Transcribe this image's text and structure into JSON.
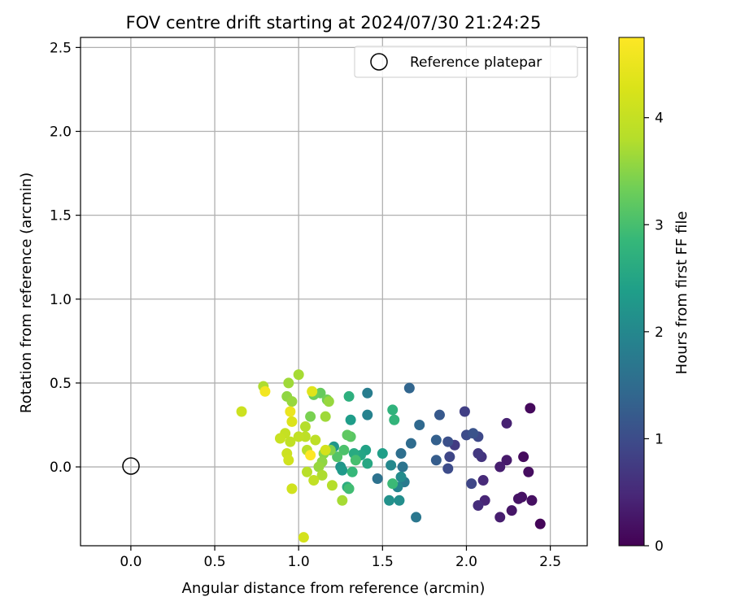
{
  "chart_data": {
    "type": "scatter",
    "title": "FOV centre drift starting at 2024/07/30 21:24:25",
    "xlabel": "Angular distance from reference (arcmin)",
    "ylabel": "Rotation from reference (arcmin)",
    "xlim": [
      -0.3,
      2.72
    ],
    "ylim": [
      -0.47,
      2.56
    ],
    "x_ticks": [
      0.0,
      0.5,
      1.0,
      1.5,
      2.0,
      2.5
    ],
    "x_tick_labels": [
      "0.0",
      "0.5",
      "1.0",
      "1.5",
      "2.0",
      "2.5"
    ],
    "y_ticks": [
      0.0,
      0.5,
      1.0,
      1.5,
      2.0,
      2.5
    ],
    "y_tick_labels": [
      "0.0",
      "0.5",
      "1.0",
      "1.5",
      "2.0",
      "2.5"
    ],
    "grid": true,
    "legend": {
      "location": "upper right",
      "entries": [
        "Reference platepar"
      ]
    },
    "reference_point": {
      "x": 0.0,
      "y": 0.0,
      "label": "Reference platepar"
    },
    "colorbar": {
      "label": "Hours from first FF file",
      "colormap": "viridis",
      "range": [
        0,
        4.75
      ],
      "ticks": [
        0,
        1,
        2,
        3,
        4
      ],
      "tick_labels": [
        "0",
        "1",
        "2",
        "3",
        "4"
      ]
    },
    "series": [
      {
        "points": [
          {
            "x": 2.44,
            "y": -0.34,
            "h": 0.05
          },
          {
            "x": 2.38,
            "y": 0.35,
            "h": 0.1
          },
          {
            "x": 2.34,
            "y": 0.06,
            "h": 0.12
          },
          {
            "x": 2.37,
            "y": -0.03,
            "h": 0.15
          },
          {
            "x": 2.39,
            "y": -0.2,
            "h": 0.18
          },
          {
            "x": 2.33,
            "y": -0.18,
            "h": 0.2
          },
          {
            "x": 2.31,
            "y": -0.19,
            "h": 0.22
          },
          {
            "x": 2.27,
            "y": -0.26,
            "h": 0.25
          },
          {
            "x": 2.24,
            "y": 0.04,
            "h": 0.3
          },
          {
            "x": 2.2,
            "y": 0.0,
            "h": 0.35
          },
          {
            "x": 2.2,
            "y": -0.3,
            "h": 0.35
          },
          {
            "x": 2.24,
            "y": 0.26,
            "h": 0.4
          },
          {
            "x": 2.11,
            "y": -0.2,
            "h": 0.45
          },
          {
            "x": 2.1,
            "y": -0.08,
            "h": 0.5
          },
          {
            "x": 2.07,
            "y": -0.23,
            "h": 0.55
          },
          {
            "x": 2.09,
            "y": 0.06,
            "h": 0.65
          },
          {
            "x": 2.07,
            "y": 0.08,
            "h": 0.7
          },
          {
            "x": 1.93,
            "y": 0.13,
            "h": 0.75
          },
          {
            "x": 1.99,
            "y": 0.33,
            "h": 0.8
          },
          {
            "x": 2.03,
            "y": -0.1,
            "h": 0.9
          },
          {
            "x": 1.9,
            "y": 0.06,
            "h": 0.9
          },
          {
            "x": 2.07,
            "y": 0.18,
            "h": 0.95
          },
          {
            "x": 2.0,
            "y": 0.19,
            "h": 1.0
          },
          {
            "x": 1.89,
            "y": -0.01,
            "h": 1.0
          },
          {
            "x": 1.89,
            "y": 0.15,
            "h": 1.05
          },
          {
            "x": 2.04,
            "y": 0.2,
            "h": 1.1
          },
          {
            "x": 1.84,
            "y": 0.31,
            "h": 1.2
          },
          {
            "x": 1.82,
            "y": 0.04,
            "h": 1.25
          },
          {
            "x": 1.82,
            "y": 0.16,
            "h": 1.3
          },
          {
            "x": 1.66,
            "y": 0.47,
            "h": 1.4
          },
          {
            "x": 1.72,
            "y": 0.25,
            "h": 1.45
          },
          {
            "x": 1.67,
            "y": 0.14,
            "h": 1.5
          },
          {
            "x": 1.61,
            "y": 0.08,
            "h": 1.55
          },
          {
            "x": 1.47,
            "y": -0.07,
            "h": 1.6
          },
          {
            "x": 1.62,
            "y": 0.0,
            "h": 1.65
          },
          {
            "x": 1.7,
            "y": -0.3,
            "h": 1.7
          },
          {
            "x": 1.63,
            "y": -0.09,
            "h": 1.75
          },
          {
            "x": 1.41,
            "y": 0.44,
            "h": 1.8
          },
          {
            "x": 1.41,
            "y": 0.31,
            "h": 1.9
          },
          {
            "x": 1.59,
            "y": -0.12,
            "h": 1.95
          },
          {
            "x": 1.55,
            "y": 0.01,
            "h": 2.0
          },
          {
            "x": 1.61,
            "y": -0.06,
            "h": 2.05
          },
          {
            "x": 1.6,
            "y": -0.2,
            "h": 2.1
          },
          {
            "x": 1.54,
            "y": -0.2,
            "h": 2.15
          },
          {
            "x": 1.25,
            "y": 0.0,
            "h": 2.2
          },
          {
            "x": 1.21,
            "y": 0.12,
            "h": 2.25
          },
          {
            "x": 1.26,
            "y": -0.02,
            "h": 2.3
          },
          {
            "x": 1.31,
            "y": 0.28,
            "h": 2.35
          },
          {
            "x": 1.5,
            "y": 0.08,
            "h": 2.4
          },
          {
            "x": 1.4,
            "y": 0.1,
            "h": 2.45
          },
          {
            "x": 1.37,
            "y": 0.07,
            "h": 2.5
          },
          {
            "x": 1.41,
            "y": 0.02,
            "h": 2.55
          },
          {
            "x": 1.33,
            "y": 0.08,
            "h": 2.6
          },
          {
            "x": 1.29,
            "y": -0.12,
            "h": 2.65
          },
          {
            "x": 1.3,
            "y": 0.42,
            "h": 2.7
          },
          {
            "x": 1.56,
            "y": 0.34,
            "h": 2.75
          },
          {
            "x": 1.57,
            "y": 0.28,
            "h": 2.8
          },
          {
            "x": 1.32,
            "y": -0.03,
            "h": 2.85
          },
          {
            "x": 1.56,
            "y": -0.1,
            "h": 2.9
          },
          {
            "x": 1.3,
            "y": -0.13,
            "h": 2.95
          },
          {
            "x": 1.34,
            "y": 0.04,
            "h": 3.0
          },
          {
            "x": 1.27,
            "y": 0.1,
            "h": 3.05
          },
          {
            "x": 1.23,
            "y": 0.06,
            "h": 3.1
          },
          {
            "x": 1.31,
            "y": 0.18,
            "h": 3.15
          },
          {
            "x": 1.29,
            "y": 0.19,
            "h": 3.2
          },
          {
            "x": 1.13,
            "y": 0.44,
            "h": 3.25
          },
          {
            "x": 1.09,
            "y": 0.43,
            "h": 3.3
          },
          {
            "x": 1.17,
            "y": 0.4,
            "h": 3.35
          },
          {
            "x": 1.07,
            "y": 0.3,
            "h": 3.4
          },
          {
            "x": 1.19,
            "y": 0.1,
            "h": 3.45
          },
          {
            "x": 1.15,
            "y": 0.08,
            "h": 3.5
          },
          {
            "x": 1.14,
            "y": 0.03,
            "h": 3.55
          },
          {
            "x": 1.12,
            "y": 0.0,
            "h": 3.6
          },
          {
            "x": 1.18,
            "y": 0.39,
            "h": 3.6
          },
          {
            "x": 1.16,
            "y": 0.3,
            "h": 3.65
          },
          {
            "x": 1.26,
            "y": -0.2,
            "h": 3.7
          },
          {
            "x": 1.14,
            "y": -0.05,
            "h": 3.75
          },
          {
            "x": 1.2,
            "y": -0.11,
            "h": 3.8
          },
          {
            "x": 1.05,
            "y": 0.1,
            "h": 3.85
          },
          {
            "x": 1.05,
            "y": -0.03,
            "h": 3.85
          },
          {
            "x": 1.1,
            "y": 0.16,
            "h": 3.9
          },
          {
            "x": 1.04,
            "y": 0.18,
            "h": 3.9
          },
          {
            "x": 1.09,
            "y": -0.08,
            "h": 3.95
          },
          {
            "x": 0.95,
            "y": 0.15,
            "h": 3.95
          },
          {
            "x": 0.93,
            "y": 0.42,
            "h": 3.55
          },
          {
            "x": 0.96,
            "y": 0.39,
            "h": 3.6
          },
          {
            "x": 0.94,
            "y": 0.5,
            "h": 3.65
          },
          {
            "x": 1.0,
            "y": 0.55,
            "h": 3.7
          },
          {
            "x": 0.79,
            "y": 0.48,
            "h": 3.75
          },
          {
            "x": 1.04,
            "y": 0.24,
            "h": 3.8
          },
          {
            "x": 1.0,
            "y": 0.18,
            "h": 3.95
          },
          {
            "x": 0.92,
            "y": 0.2,
            "h": 4.0
          },
          {
            "x": 0.89,
            "y": 0.17,
            "h": 4.05
          },
          {
            "x": 0.66,
            "y": 0.33,
            "h": 4.1
          },
          {
            "x": 0.93,
            "y": 0.08,
            "h": 4.1
          },
          {
            "x": 0.94,
            "y": 0.04,
            "h": 4.15
          },
          {
            "x": 0.96,
            "y": -0.13,
            "h": 4.15
          },
          {
            "x": 1.03,
            "y": -0.42,
            "h": 4.2
          },
          {
            "x": 1.16,
            "y": 0.1,
            "h": 4.2
          },
          {
            "x": 0.96,
            "y": 0.27,
            "h": 4.3
          },
          {
            "x": 1.08,
            "y": 0.45,
            "h": 4.35
          },
          {
            "x": 0.95,
            "y": 0.33,
            "h": 4.5
          },
          {
            "x": 0.8,
            "y": 0.45,
            "h": 4.6
          },
          {
            "x": 1.07,
            "y": 0.07,
            "h": 4.75
          }
        ]
      }
    ]
  }
}
